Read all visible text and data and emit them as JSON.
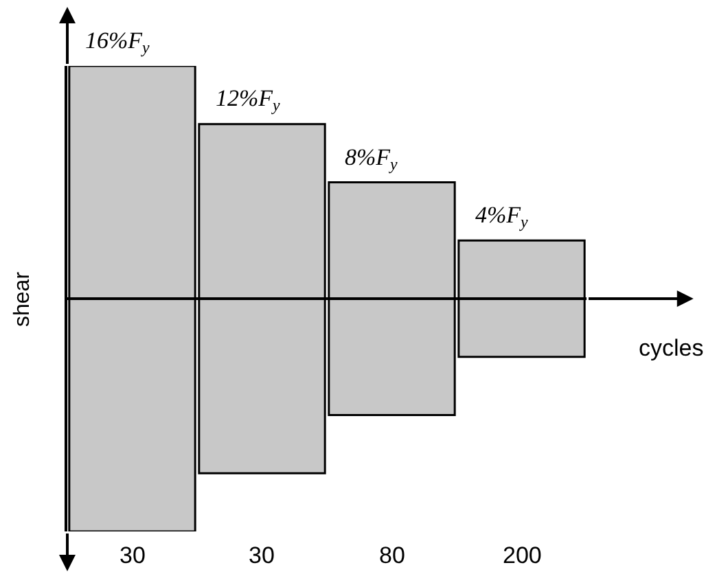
{
  "chart_data": {
    "type": "bar",
    "stacked": true,
    "xlabel": "cycles",
    "ylabel": "shear",
    "categories": [
      "30",
      "30",
      "80",
      "200"
    ],
    "series": [
      {
        "color": "#c8c8c8",
        "values": [
          16,
          12,
          8,
          4
        ],
        "value_labels": [
          "16%F$_{y}$",
          "12%F$_{y}$",
          "8%F$_{y}$",
          "4%F$_{y}$"
        ]
      },
      {
        "color": "#c8c8c8",
        "values": [
          -16,
          -12,
          -8,
          -4
        ]
      }
    ]
  }
}
